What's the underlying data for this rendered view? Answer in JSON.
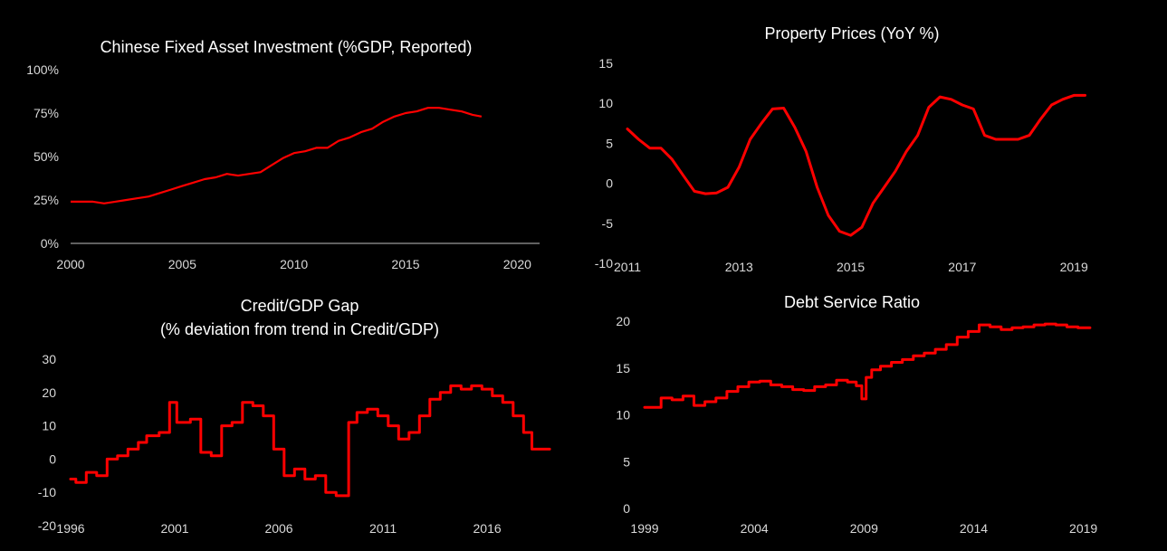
{
  "chart_data": [
    {
      "id": "fai",
      "type": "line",
      "title": "Chinese Fixed Asset Investment (%GDP, Reported)",
      "xlabel": "",
      "ylabel": "",
      "xlim": [
        2000,
        2021
      ],
      "ylim": [
        0,
        100
      ],
      "x_ticks": [
        "2000",
        "2005",
        "2010",
        "2015",
        "2020"
      ],
      "y_ticks": [
        "0%",
        "25%",
        "50%",
        "75%",
        "100%"
      ],
      "series": [
        {
          "x": [
            2000.0,
            2000.5,
            2001.0,
            2001.5,
            2002.0,
            2002.5,
            2003.0,
            2003.5,
            2004.0,
            2004.5,
            2005.0,
            2005.5,
            2006.0,
            2006.5,
            2007.0,
            2007.5,
            2008.0,
            2008.5,
            2009.0,
            2009.5,
            2010.0,
            2010.5,
            2011.0,
            2011.5,
            2012.0,
            2012.5,
            2013.0,
            2013.5,
            2014.0,
            2014.5,
            2015.0,
            2015.5,
            2016.0,
            2016.5,
            2017.0,
            2017.5,
            2018.0,
            2018.4
          ],
          "y": [
            24,
            24,
            24,
            23,
            24,
            25,
            26,
            27,
            29,
            31,
            33,
            35,
            37,
            38,
            40,
            39,
            40,
            41,
            45,
            49,
            52,
            53,
            55,
            55,
            59,
            61,
            64,
            66,
            70,
            73,
            75,
            76,
            78,
            78,
            77,
            76,
            74,
            73
          ]
        }
      ]
    },
    {
      "id": "property",
      "type": "line",
      "title": "Property Prices (YoY %)",
      "xlabel": "",
      "ylabel": "",
      "xlim": [
        2011,
        2019.5
      ],
      "ylim": [
        -10,
        15
      ],
      "x_ticks": [
        "2011",
        "2013",
        "2015",
        "2017",
        "2019"
      ],
      "y_ticks": [
        "-10",
        "-5",
        "0",
        "5",
        "10",
        "15"
      ],
      "series": [
        {
          "x": [
            2011.0,
            2011.2,
            2011.4,
            2011.6,
            2011.8,
            2012.0,
            2012.2,
            2012.4,
            2012.6,
            2012.8,
            2013.0,
            2013.2,
            2013.4,
            2013.6,
            2013.8,
            2014.0,
            2014.2,
            2014.4,
            2014.6,
            2014.8,
            2015.0,
            2015.2,
            2015.4,
            2015.6,
            2015.8,
            2016.0,
            2016.2,
            2016.4,
            2016.6,
            2016.8,
            2017.0,
            2017.2,
            2017.4,
            2017.6,
            2017.8,
            2018.0,
            2018.2,
            2018.4,
            2018.6,
            2018.8,
            2019.0,
            2019.2
          ],
          "y": [
            6.8,
            5.5,
            4.4,
            4.4,
            3.0,
            1.0,
            -1.0,
            -1.3,
            -1.2,
            -0.5,
            2.0,
            5.5,
            7.5,
            9.3,
            9.4,
            7.0,
            4.0,
            -0.5,
            -4.0,
            -6.0,
            -6.5,
            -5.5,
            -2.5,
            -0.5,
            1.5,
            4.0,
            6.0,
            9.5,
            10.8,
            10.5,
            9.8,
            9.3,
            6.0,
            5.5,
            5.5,
            5.5,
            6.0,
            8.0,
            9.8,
            10.5,
            11.0,
            11.0
          ]
        }
      ]
    },
    {
      "id": "creditgap",
      "type": "line",
      "title": "Credit/GDP Gap",
      "subtitle": "(% deviation from trend in Credit/GDP)",
      "xlabel": "",
      "ylabel": "",
      "xlim": [
        1996,
        2019.3
      ],
      "ylim": [
        -20,
        30
      ],
      "x_ticks": [
        "1996",
        "2001",
        "2006",
        "2011",
        "2016"
      ],
      "y_ticks": [
        "-20",
        "-10",
        "0",
        "10",
        "20",
        "30"
      ],
      "series": [
        {
          "x": [
            1996.0,
            1996.5,
            1997.0,
            1997.5,
            1998.0,
            1998.5,
            1999.0,
            1999.5,
            1999.8,
            2000.0,
            2000.5,
            2001.0,
            2001.2,
            2001.5,
            2002.0,
            2002.5,
            2003.0,
            2003.5,
            2004.0,
            2004.5,
            2005.0,
            2005.5,
            2006.0,
            2006.5,
            2007.0,
            2007.5,
            2008.0,
            2008.5,
            2009.0,
            2009.2,
            2009.5,
            2010.0,
            2010.5,
            2011.0,
            2011.5,
            2012.0,
            2012.5,
            2013.0,
            2013.5,
            2014.0,
            2014.5,
            2015.0,
            2015.5,
            2016.0,
            2016.5,
            2017.0,
            2017.5,
            2018.0,
            2018.3,
            2019.0
          ],
          "y": [
            -6,
            -7,
            -4,
            -5,
            0,
            1,
            3,
            5,
            7,
            7,
            8,
            17,
            11,
            11,
            12,
            2,
            1,
            10,
            11,
            17,
            16,
            13,
            3,
            -5,
            -3,
            -6,
            -5,
            -10,
            -11,
            -11,
            11,
            14,
            15,
            13,
            10,
            6,
            8,
            13,
            18,
            20,
            22,
            21,
            22,
            21,
            19,
            17,
            13,
            8,
            3,
            3
          ]
        }
      ]
    },
    {
      "id": "dsr",
      "type": "line",
      "title": "Debt Service Ratio",
      "xlabel": "",
      "ylabel": "",
      "xlim": [
        1999,
        2019.8
      ],
      "ylim": [
        0,
        20
      ],
      "x_ticks": [
        "1999",
        "2004",
        "2009",
        "2014",
        "2019"
      ],
      "y_ticks": [
        "0",
        "5",
        "10",
        "15",
        "20"
      ],
      "series": [
        {
          "x": [
            1999.0,
            1999.5,
            2000.0,
            2000.5,
            2001.0,
            2001.5,
            2002.0,
            2002.5,
            2003.0,
            2003.5,
            2004.0,
            2004.5,
            2005.0,
            2005.5,
            2006.0,
            2006.5,
            2007.0,
            2007.5,
            2008.0,
            2008.5,
            2008.8,
            2009.0,
            2009.2,
            2009.5,
            2010.0,
            2010.5,
            2011.0,
            2011.5,
            2012.0,
            2012.5,
            2013.0,
            2013.5,
            2014.0,
            2014.5,
            2015.0,
            2015.5,
            2016.0,
            2016.5,
            2017.0,
            2017.5,
            2018.0,
            2018.5,
            2019.0,
            2019.3
          ],
          "y": [
            10.8,
            10.8,
            11.8,
            11.6,
            12.0,
            11.0,
            11.4,
            11.8,
            12.5,
            13.0,
            13.5,
            13.6,
            13.2,
            13.0,
            12.7,
            12.6,
            13.0,
            13.2,
            13.7,
            13.5,
            13.1,
            11.7,
            14.0,
            14.8,
            15.2,
            15.6,
            15.9,
            16.3,
            16.6,
            17.0,
            17.5,
            18.3,
            18.9,
            19.6,
            19.4,
            19.1,
            19.3,
            19.4,
            19.6,
            19.7,
            19.6,
            19.4,
            19.3,
            19.3
          ]
        }
      ]
    }
  ]
}
